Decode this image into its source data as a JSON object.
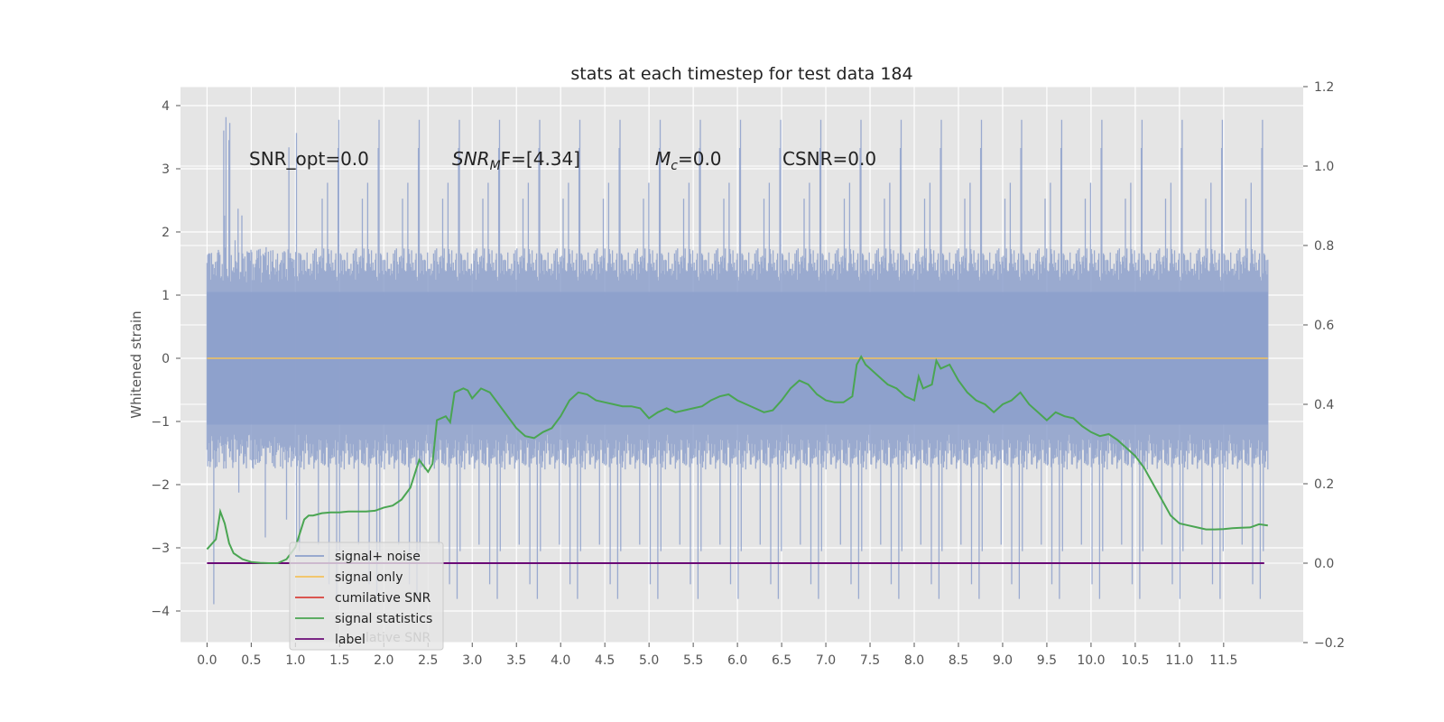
{
  "chart_data": {
    "type": "line",
    "title": "stats at each timestep for test data 184",
    "ylabel": "Whitened strain",
    "xlabel": "",
    "xlim": [
      -0.3,
      12.4
    ],
    "ylim": [
      -4.5,
      4.3
    ],
    "y2lim": [
      -0.2,
      1.2
    ],
    "grid": true,
    "background": "#e5e5e5",
    "x_ticks": [
      0.0,
      0.5,
      1.0,
      1.5,
      2.0,
      2.5,
      3.0,
      3.5,
      4.0,
      4.5,
      5.0,
      5.5,
      6.0,
      6.5,
      7.0,
      7.5,
      8.0,
      8.5,
      9.0,
      9.5,
      10.0,
      10.5,
      11.0,
      11.5
    ],
    "x_tick_labels": [
      "0.0",
      "0.5",
      "1.0",
      "1.5",
      "2.0",
      "2.5",
      "3.0",
      "3.5",
      "4.0",
      "4.5",
      "5.0",
      "5.5",
      "6.0",
      "6.5",
      "7.0",
      "7.5",
      "8.0",
      "8.5",
      "9.0",
      "9.5",
      "10.0",
      "10.5",
      "11.0",
      "11.5"
    ],
    "y_ticks": [
      4,
      3,
      2,
      1,
      0,
      -1,
      -2,
      -3,
      -4
    ],
    "y_tick_labels": [
      "4",
      "3",
      "2",
      "1",
      "0",
      "−1",
      "−2",
      "−3",
      "−4"
    ],
    "y2_ticks": [
      1.2,
      1.0,
      0.8,
      0.6,
      0.4,
      0.2,
      0.0,
      -0.2
    ],
    "y2_tick_labels": [
      "1.2",
      "1.0",
      "0.8",
      "0.6",
      "0.4",
      "0.2",
      "0.0",
      "−0.2"
    ],
    "legend": {
      "placement": "lower-left",
      "entries": [
        {
          "label": "signal+ noise",
          "color": "#8da0cb"
        },
        {
          "label": "signal only",
          "color": "#f3c25c"
        },
        {
          "label": "cumilative SNR",
          "color": "#d9413a"
        },
        {
          "label": "signal statistics",
          "color": "#4aa552"
        },
        {
          "label": "label",
          "color": "#6b0a76"
        }
      ],
      "ghost_text": "lative SNR"
    },
    "annotations": {
      "snr_opt": "SNR_opt=0.0",
      "snr_mf": "SNR",
      "snr_mf_sub": "M",
      "snr_mf_rest": "F=[4.34]",
      "mc": "M",
      "mc_sub": "c",
      "mc_rest": "=0.0",
      "csnr": "CSNR=0.0"
    },
    "series": [
      {
        "name": "signal+ noise",
        "axis": "left",
        "color": "#8da0cb",
        "x_range": [
          0.0,
          12.0
        ],
        "typical_range": [
          -1.6,
          1.6
        ],
        "peak_max": 3.85,
        "peak_min": -4.1
      },
      {
        "name": "signal only",
        "axis": "left",
        "color": "#f3c25c",
        "x": [
          0.0,
          12.0
        ],
        "y": [
          0.0,
          0.0
        ]
      },
      {
        "name": "signal statistics",
        "axis": "right",
        "color": "#4aa552",
        "x": [
          0.0,
          0.1,
          0.15,
          0.2,
          0.25,
          0.3,
          0.4,
          0.5,
          0.6,
          0.7,
          0.8,
          0.9,
          1.0,
          1.1,
          1.15,
          1.2,
          1.3,
          1.4,
          1.5,
          1.6,
          1.7,
          1.8,
          1.9,
          2.0,
          2.1,
          2.2,
          2.3,
          2.4,
          2.5,
          2.55,
          2.6,
          2.7,
          2.75,
          2.8,
          2.9,
          2.95,
          3.0,
          3.1,
          3.2,
          3.3,
          3.4,
          3.5,
          3.6,
          3.7,
          3.8,
          3.9,
          4.0,
          4.1,
          4.2,
          4.3,
          4.4,
          4.5,
          4.6,
          4.7,
          4.8,
          4.9,
          5.0,
          5.1,
          5.2,
          5.3,
          5.4,
          5.5,
          5.6,
          5.7,
          5.8,
          5.9,
          6.0,
          6.1,
          6.2,
          6.3,
          6.4,
          6.5,
          6.6,
          6.7,
          6.8,
          6.9,
          7.0,
          7.1,
          7.2,
          7.3,
          7.35,
          7.4,
          7.45,
          7.5,
          7.6,
          7.7,
          7.8,
          7.9,
          8.0,
          8.05,
          8.1,
          8.2,
          8.25,
          8.3,
          8.4,
          8.5,
          8.6,
          8.7,
          8.8,
          8.9,
          9.0,
          9.1,
          9.2,
          9.3,
          9.4,
          9.5,
          9.6,
          9.7,
          9.8,
          9.9,
          10.0,
          10.1,
          10.2,
          10.3,
          10.4,
          10.5,
          10.6,
          10.7,
          10.8,
          10.9,
          11.0,
          11.1,
          11.2,
          11.3,
          11.4,
          11.5,
          11.6,
          11.7,
          11.8,
          11.9,
          12.0
        ],
        "y": [
          0.035,
          0.06,
          0.13,
          0.1,
          0.05,
          0.025,
          0.01,
          0.003,
          0.001,
          0.0,
          0.0,
          0.01,
          0.04,
          0.11,
          0.12,
          0.12,
          0.126,
          0.128,
          0.128,
          0.13,
          0.13,
          0.13,
          0.132,
          0.14,
          0.145,
          0.16,
          0.19,
          0.26,
          0.23,
          0.25,
          0.36,
          0.37,
          0.355,
          0.43,
          0.44,
          0.435,
          0.415,
          0.44,
          0.43,
          0.4,
          0.37,
          0.34,
          0.32,
          0.315,
          0.33,
          0.34,
          0.37,
          0.41,
          0.43,
          0.425,
          0.41,
          0.405,
          0.4,
          0.395,
          0.395,
          0.39,
          0.365,
          0.38,
          0.39,
          0.38,
          0.385,
          0.39,
          0.395,
          0.41,
          0.42,
          0.425,
          0.41,
          0.4,
          0.39,
          0.38,
          0.385,
          0.41,
          0.44,
          0.46,
          0.45,
          0.425,
          0.41,
          0.405,
          0.405,
          0.42,
          0.5,
          0.52,
          0.5,
          0.49,
          0.47,
          0.45,
          0.44,
          0.42,
          0.41,
          0.47,
          0.44,
          0.45,
          0.51,
          0.49,
          0.5,
          0.46,
          0.43,
          0.41,
          0.4,
          0.38,
          0.4,
          0.41,
          0.43,
          0.4,
          0.38,
          0.36,
          0.38,
          0.37,
          0.365,
          0.345,
          0.33,
          0.32,
          0.325,
          0.31,
          0.29,
          0.27,
          0.24,
          0.2,
          0.16,
          0.12,
          0.1,
          0.095,
          0.09,
          0.085,
          0.085,
          0.086,
          0.088,
          0.089,
          0.09,
          0.098,
          0.095
        ]
      },
      {
        "name": "label",
        "axis": "right",
        "color": "#6b0a76",
        "x": [
          0.0,
          12.0
        ],
        "y": [
          0.0,
          0.0
        ]
      }
    ]
  }
}
